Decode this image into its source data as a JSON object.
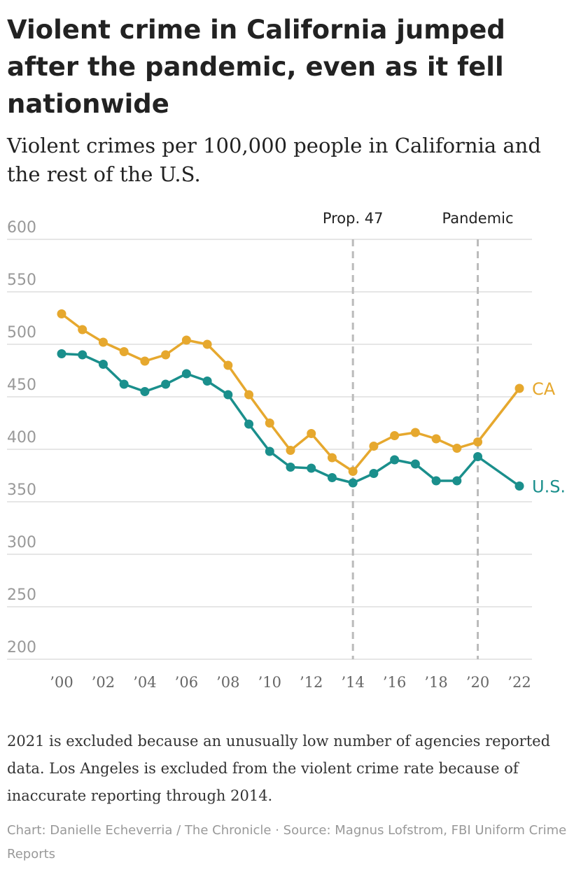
{
  "title": "Violent crime in California jumped after the pandemic, even as it fell nationwide",
  "subtitle": "Violent crimes per 100,000 people in California and the rest of the U.S.",
  "note": "2021 is excluded because an unusually low number of agencies reported data. Los Angeles is excluded from the violent crime rate because of inaccurate reporting through 2014.",
  "credit": "Chart: Danielle Echeverria / The Chronicle · Source: Magnus Lofstrom, FBI Uniform Crime Reports",
  "colors": {
    "ca": "#E6A82E",
    "us": "#1A8F8C",
    "grid": "#dddddd",
    "annotation": "#bbbbbb",
    "axis_text": "#999999"
  },
  "chart_data": {
    "type": "line",
    "title": "",
    "xlabel": "",
    "ylabel": "",
    "xlim": [
      2000,
      2022
    ],
    "ylim": [
      200,
      600
    ],
    "yticks": [
      200,
      250,
      300,
      350,
      400,
      450,
      500,
      550,
      600
    ],
    "xticks": [
      2000,
      2002,
      2004,
      2006,
      2008,
      2010,
      2012,
      2014,
      2016,
      2018,
      2020,
      2022
    ],
    "xtick_labels": [
      "’00",
      "’02",
      "’04",
      "’06",
      "’08",
      "’10",
      "’12",
      "’14",
      "’16",
      "’18",
      "’20",
      "’22"
    ],
    "grid": true,
    "annotations": [
      {
        "x": 2014,
        "label": "Prop. 47"
      },
      {
        "x": 2020,
        "label": "Pandemic"
      }
    ],
    "x": [
      2000,
      2001,
      2002,
      2003,
      2004,
      2005,
      2006,
      2007,
      2008,
      2009,
      2010,
      2011,
      2012,
      2013,
      2014,
      2015,
      2016,
      2017,
      2018,
      2019,
      2020,
      2022
    ],
    "series": [
      {
        "name": "CA",
        "key": "ca",
        "values": [
          529,
          514,
          502,
          493,
          484,
          490,
          504,
          500,
          480,
          452,
          425,
          399,
          415,
          392,
          379,
          403,
          413,
          416,
          410,
          401,
          407,
          458
        ]
      },
      {
        "name": "U.S.",
        "key": "us",
        "values": [
          491,
          490,
          481,
          462,
          455,
          462,
          472,
          465,
          452,
          424,
          398,
          383,
          382,
          373,
          368,
          377,
          390,
          386,
          370,
          370,
          393,
          365
        ]
      }
    ]
  }
}
